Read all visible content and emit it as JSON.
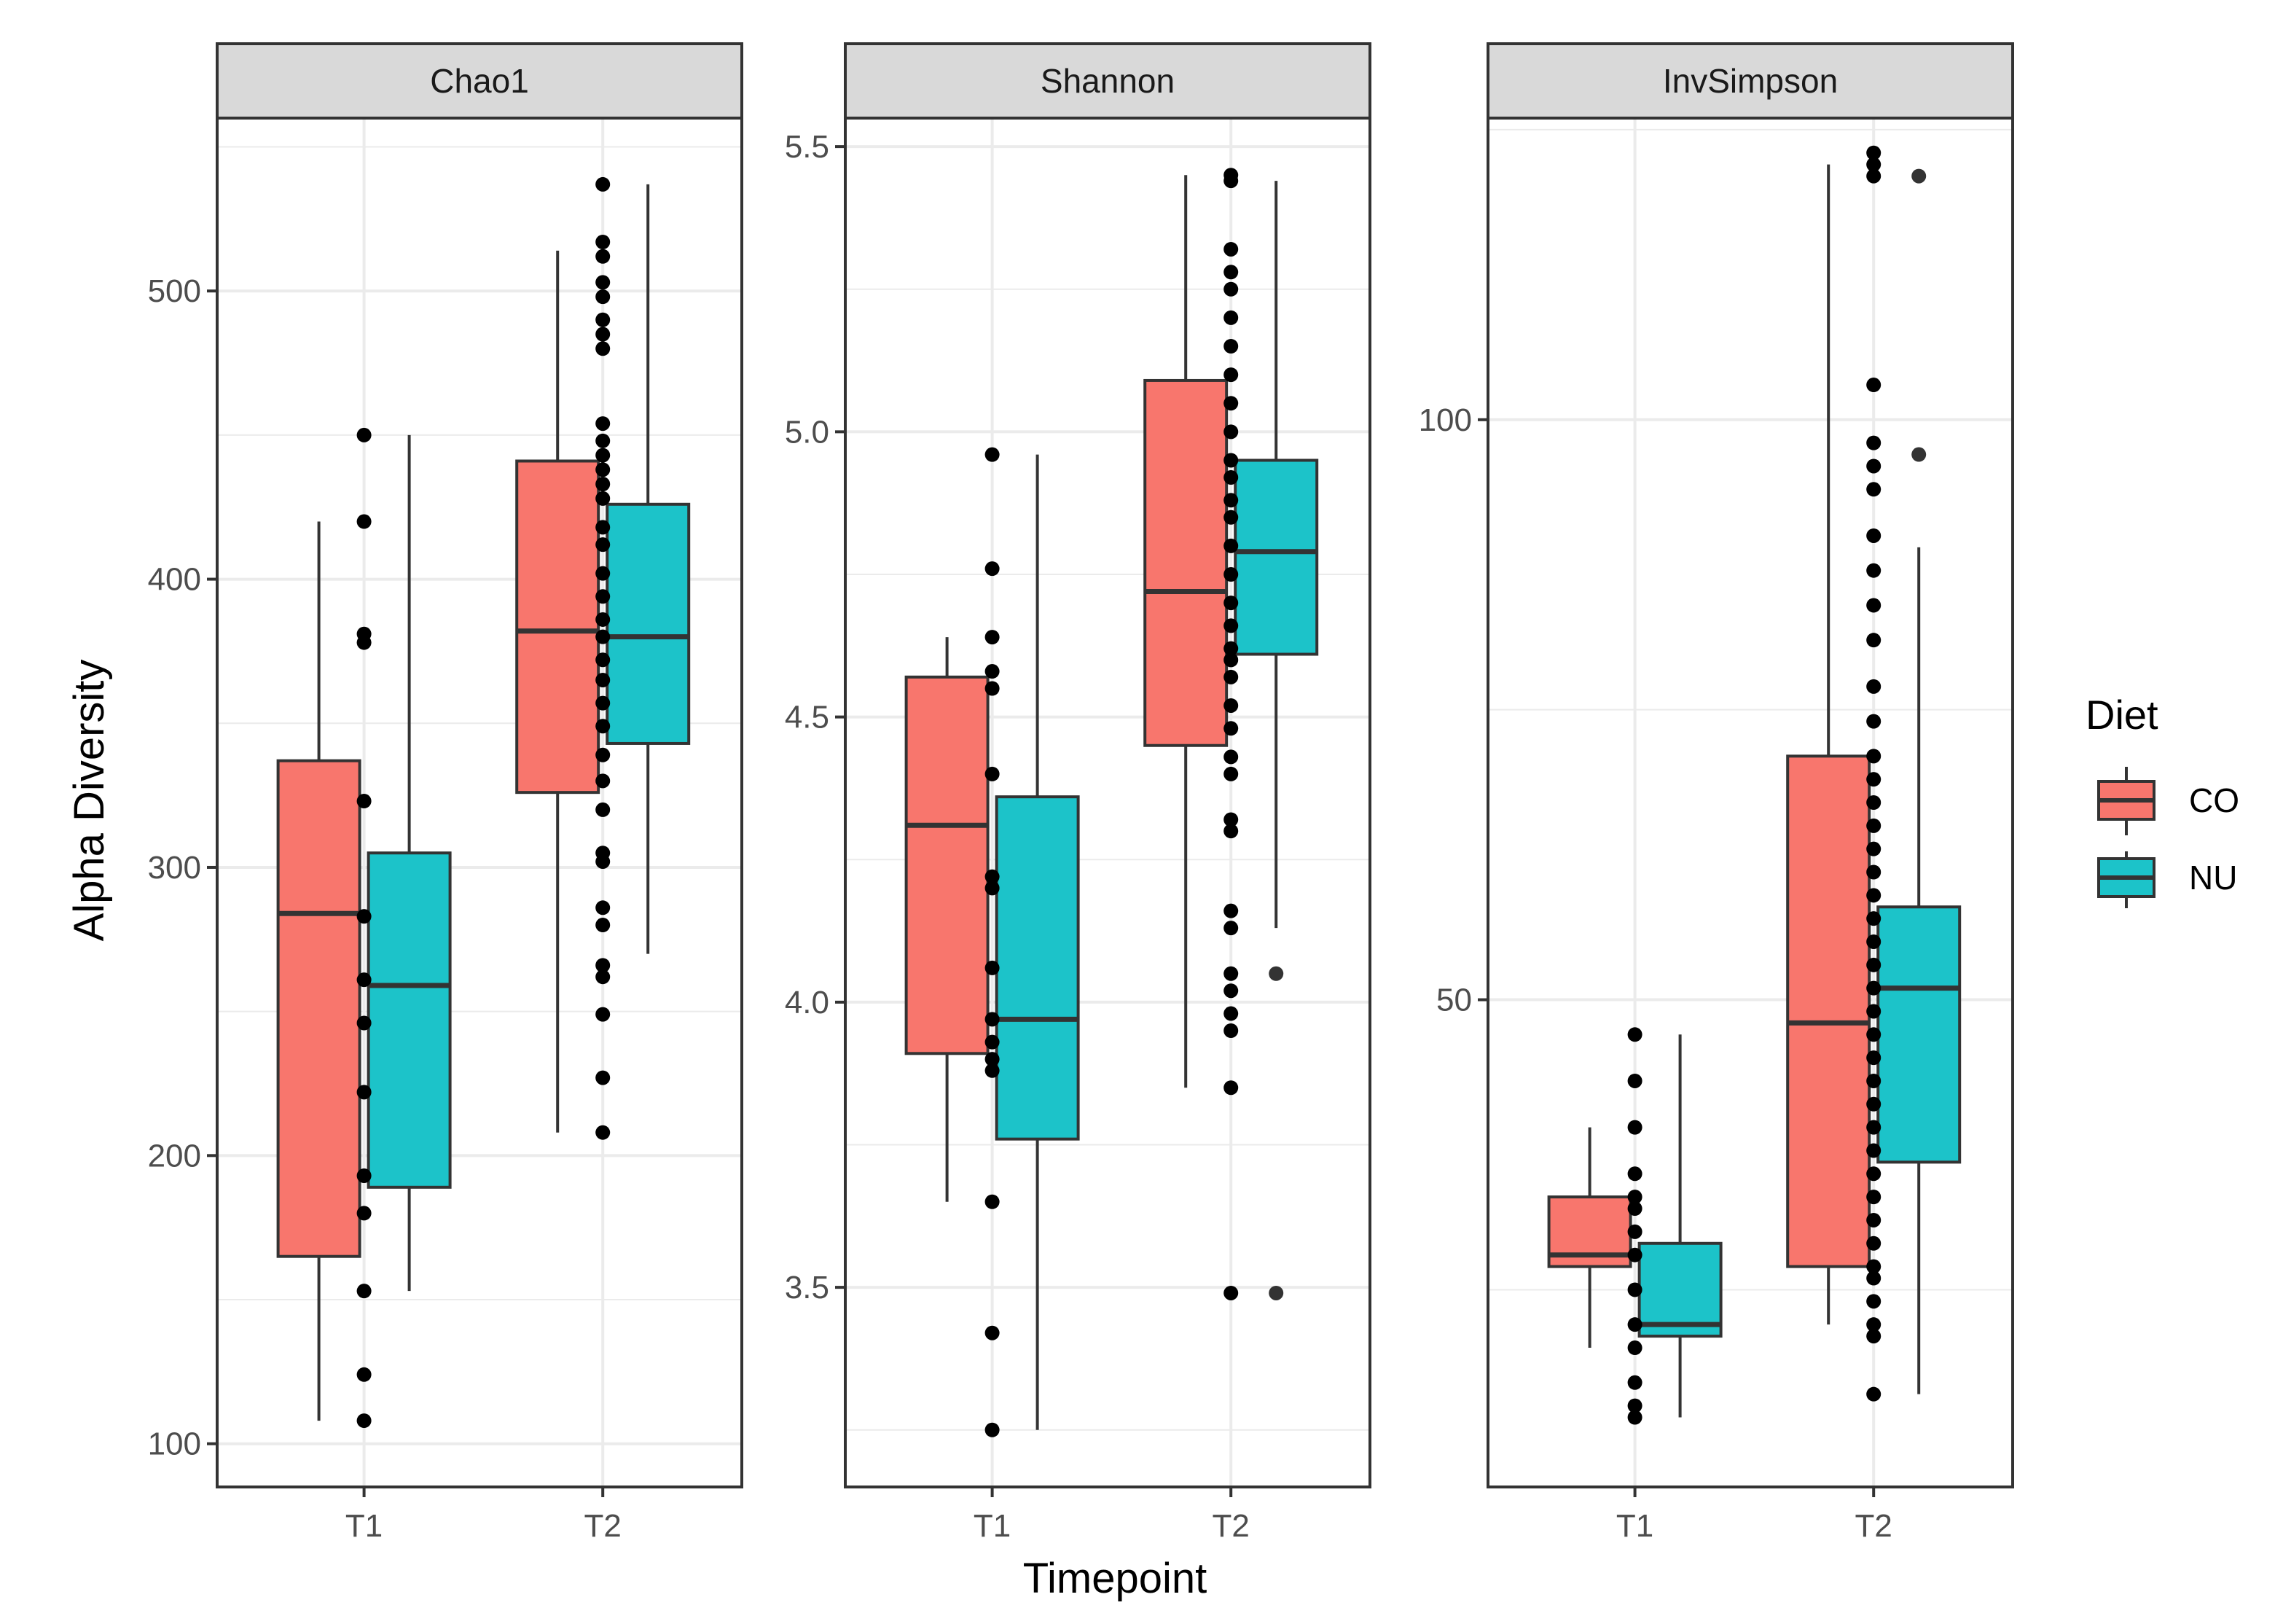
{
  "chart_data": {
    "type": "boxplot",
    "xlabel": "Timepoint",
    "ylabel": "Alpha Diversity",
    "categories": [
      "T1",
      "T2"
    ],
    "legend": {
      "title": "Diet",
      "position": "right",
      "items": [
        {
          "name": "CO",
          "color": "#F8766D"
        },
        {
          "name": "NU",
          "color": "#1CC3C9"
        }
      ]
    },
    "colors": {
      "CO": "#F8766D",
      "NU": "#1CC3C9",
      "strip_fill": "#d9d9d9",
      "panel_border": "#333333",
      "grid": "#ebebeb",
      "points": "#000000"
    },
    "panels": [
      {
        "title": "Chao1",
        "ylim": [
          85,
          560
        ],
        "yticks": [
          100,
          200,
          300,
          400,
          500
        ],
        "minor_ticks": [
          150,
          250,
          350,
          450,
          550
        ],
        "boxes": [
          {
            "timepoint": "T1",
            "diet": "CO",
            "min": 108,
            "q1": 165,
            "median": 284,
            "q3": 337,
            "max": 420
          },
          {
            "timepoint": "T1",
            "diet": "NU",
            "min": 153,
            "q1": 189,
            "median": 259,
            "q3": 305,
            "max": 450
          },
          {
            "timepoint": "T2",
            "diet": "CO",
            "min": 208,
            "q1": 326,
            "median": 382,
            "q3": 441,
            "max": 514
          },
          {
            "timepoint": "T2",
            "diet": "NU",
            "min": 270,
            "q1": 343,
            "median": 380,
            "q3": 426,
            "max": 537
          }
        ],
        "points": [
          {
            "timepoint": "T1",
            "values": [
              108,
              124,
              153,
              180,
              193,
              222,
              246,
              261,
              283,
              323,
              378,
              381,
              420,
              450
            ]
          },
          {
            "timepoint": "T2",
            "values": [
              208,
              227,
              249,
              262,
              266,
              280,
              286,
              302,
              305,
              320,
              330,
              339,
              349,
              357,
              365,
              372,
              380,
              386,
              394,
              402,
              412,
              418,
              428,
              433,
              438,
              443,
              448,
              454,
              480,
              485,
              490,
              498,
              503,
              512,
              517,
              537
            ]
          }
        ],
        "outliers": []
      },
      {
        "title": "Shannon",
        "ylim": [
          3.15,
          5.55
        ],
        "yticks": [
          3.5,
          4.0,
          4.5,
          5.0,
          5.5
        ],
        "minor_ticks": [
          3.25,
          3.75,
          4.25,
          4.75,
          5.25
        ],
        "boxes": [
          {
            "timepoint": "T1",
            "diet": "CO",
            "min": 3.65,
            "q1": 3.91,
            "median": 4.31,
            "q3": 4.57,
            "max": 4.64
          },
          {
            "timepoint": "T1",
            "diet": "NU",
            "min": 3.25,
            "q1": 3.76,
            "median": 3.97,
            "q3": 4.36,
            "max": 4.96
          },
          {
            "timepoint": "T2",
            "diet": "CO",
            "min": 3.85,
            "q1": 4.45,
            "median": 4.72,
            "q3": 5.09,
            "max": 5.45
          },
          {
            "timepoint": "T2",
            "diet": "NU",
            "min": 4.13,
            "q1": 4.61,
            "median": 4.79,
            "q3": 4.95,
            "max": 5.44
          }
        ],
        "points": [
          {
            "timepoint": "T1",
            "values": [
              3.25,
              3.42,
              3.65,
              3.88,
              3.9,
              3.93,
              3.97,
              4.06,
              4.2,
              4.22,
              4.4,
              4.55,
              4.58,
              4.64,
              4.76,
              4.96
            ]
          },
          {
            "timepoint": "T2",
            "values": [
              3.49,
              3.85,
              3.95,
              3.98,
              4.02,
              4.05,
              4.13,
              4.16,
              4.3,
              4.32,
              4.4,
              4.43,
              4.48,
              4.52,
              4.57,
              4.6,
              4.62,
              4.66,
              4.7,
              4.75,
              4.8,
              4.85,
              4.88,
              4.92,
              4.95,
              5.0,
              5.05,
              5.1,
              5.15,
              5.2,
              5.25,
              5.28,
              5.32,
              5.44,
              5.45
            ]
          }
        ],
        "outliers": [
          {
            "timepoint": "T2",
            "diet": "NU",
            "value": 4.05
          },
          {
            "timepoint": "T2",
            "diet": "NU",
            "value": 3.49
          }
        ]
      },
      {
        "title": "InvSimpson",
        "ylim": [
          8,
          126
        ],
        "yticks": [
          50,
          100
        ],
        "minor_ticks": [
          25,
          75,
          125
        ],
        "boxes": [
          {
            "timepoint": "T1",
            "diet": "CO",
            "min": 20,
            "q1": 27,
            "median": 28,
            "q3": 33,
            "max": 39
          },
          {
            "timepoint": "T1",
            "diet": "NU",
            "min": 14,
            "q1": 21,
            "median": 22,
            "q3": 29,
            "max": 47
          },
          {
            "timepoint": "T2",
            "diet": "CO",
            "min": 22,
            "q1": 27,
            "median": 48,
            "q3": 71,
            "max": 122
          },
          {
            "timepoint": "T2",
            "diet": "NU",
            "min": 16,
            "q1": 36,
            "median": 51,
            "q3": 58,
            "max": 89
          }
        ],
        "points": [
          {
            "timepoint": "T1",
            "values": [
              14,
              15,
              17,
              20,
              22,
              25,
              28,
              30,
              32,
              33,
              35,
              39,
              43,
              47
            ]
          },
          {
            "timepoint": "T2",
            "values": [
              16,
              21,
              22,
              24,
              26,
              27,
              29,
              31,
              33,
              35,
              37,
              39,
              41,
              43,
              45,
              47,
              49,
              51,
              53,
              55,
              57,
              59,
              61,
              63,
              65,
              67,
              69,
              71,
              74,
              77,
              81,
              84,
              87,
              90,
              94,
              96,
              98,
              103,
              121,
              122,
              123
            ]
          }
        ],
        "outliers": [
          {
            "timepoint": "T2",
            "diet": "NU",
            "value": 121
          },
          {
            "timepoint": "T2",
            "diet": "NU",
            "value": 97
          }
        ]
      }
    ]
  }
}
